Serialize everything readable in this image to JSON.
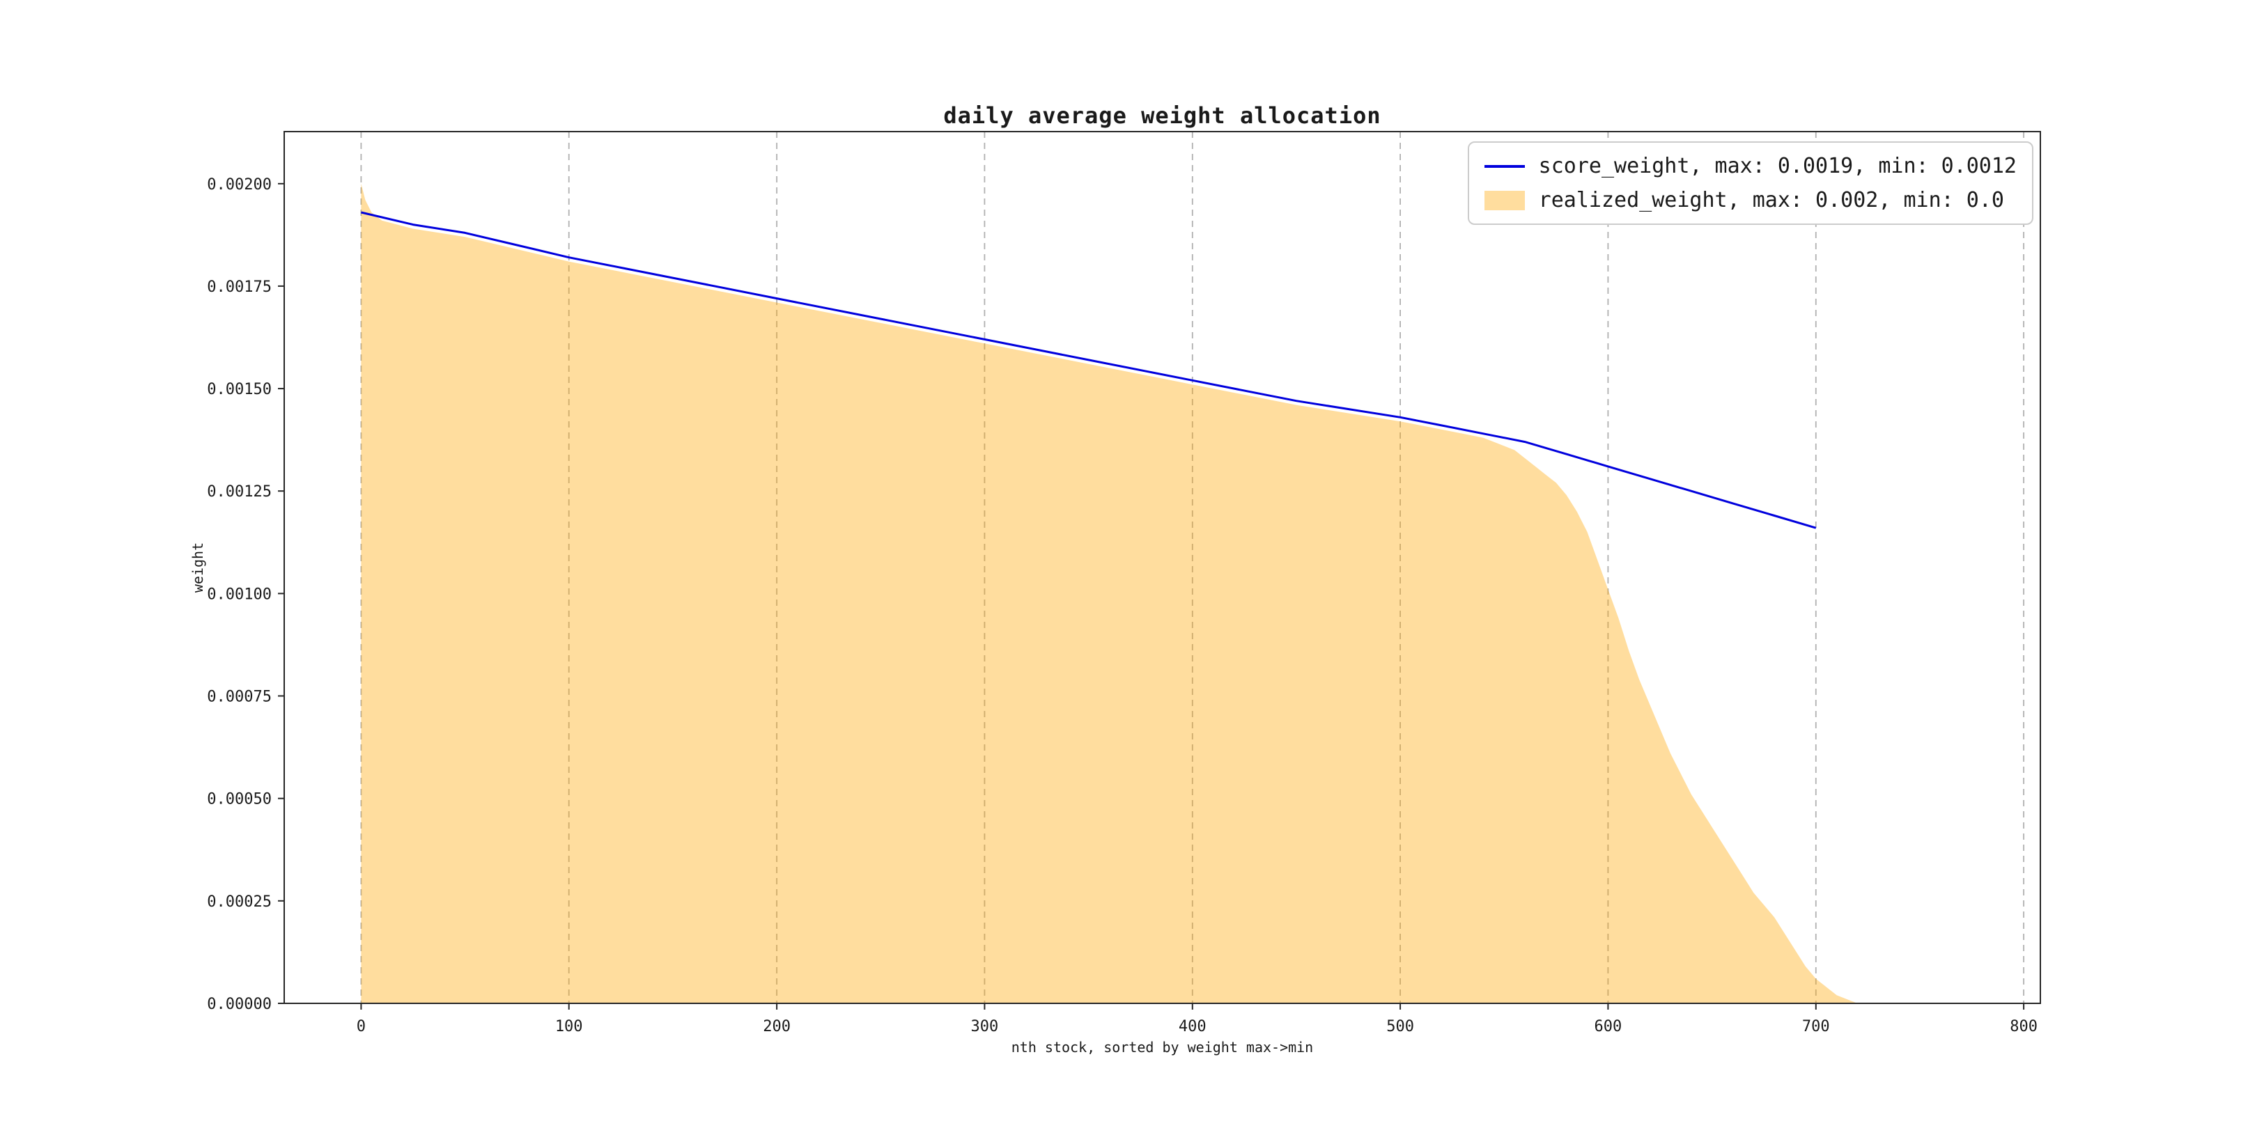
{
  "figure": {
    "title": "daily average weight allocation",
    "xlabel": "nth stock, sorted by weight max->min",
    "ylabel": "weight"
  },
  "legend": {
    "position": "upper right",
    "entries": [
      {
        "name": "score_weight",
        "swatch": "line",
        "color": "#0000dd",
        "label": "score_weight, max: 0.0019, min: 0.0012"
      },
      {
        "name": "realized_weight",
        "swatch": "patch",
        "color": "#ffa500",
        "label": "realized_weight, max: 0.002, min: 0.0"
      }
    ]
  },
  "chart_data": {
    "type": "area",
    "title": "daily average weight allocation",
    "xlabel": "nth stock, sorted by weight max->min",
    "ylabel": "weight",
    "xlim": [
      -37,
      808
    ],
    "ylim": [
      0,
      0.002127
    ],
    "x_ticks": [
      0,
      100,
      200,
      300,
      400,
      500,
      600,
      700,
      800
    ],
    "y_ticks": [
      0,
      0.00025,
      0.0005,
      0.00075,
      0.001,
      0.00125,
      0.0015,
      0.00175,
      0.002
    ],
    "y_tick_labels": [
      "0.00000",
      "0.00025",
      "0.00050",
      "0.00075",
      "0.00100",
      "0.00125",
      "0.00150",
      "0.00175",
      "0.00200"
    ],
    "grid": "vertical-dashed",
    "legend_position": "upper right",
    "style": {
      "grid_color": "#b0b0b0",
      "spine_color": "#262626",
      "text_color": "#1a1a1a"
    },
    "series": [
      {
        "name": "score_weight",
        "type": "line",
        "color": "#0000dd",
        "max": 0.0019,
        "min": 0.0012,
        "x": [
          0,
          25,
          50,
          75,
          100,
          150,
          200,
          250,
          300,
          350,
          400,
          450,
          500,
          520,
          540,
          560,
          580,
          600,
          620,
          640,
          660,
          680,
          700
        ],
        "y": [
          0.00193,
          0.0019,
          0.00188,
          0.00185,
          0.00182,
          0.00177,
          0.00172,
          0.00167,
          0.00162,
          0.00157,
          0.00152,
          0.00147,
          0.00143,
          0.00141,
          0.00139,
          0.00137,
          0.00134,
          0.00131,
          0.00128,
          0.00125,
          0.00122,
          0.00119,
          0.00116
        ]
      },
      {
        "name": "realized_weight",
        "type": "area",
        "color": "#ffa500",
        "opacity": 0.38,
        "max": 0.002,
        "min": 0.0,
        "x": [
          0,
          2,
          5,
          10,
          25,
          50,
          100,
          150,
          200,
          250,
          300,
          350,
          400,
          450,
          500,
          510,
          520,
          530,
          540,
          550,
          555,
          560,
          565,
          570,
          575,
          580,
          585,
          590,
          595,
          600,
          605,
          610,
          615,
          620,
          625,
          630,
          635,
          640,
          645,
          650,
          655,
          660,
          665,
          670,
          675,
          680,
          685,
          690,
          695,
          700,
          705,
          710,
          715,
          720
        ],
        "y": [
          0.002,
          0.00196,
          0.00193,
          0.00191,
          0.00189,
          0.00187,
          0.00181,
          0.00176,
          0.00171,
          0.00166,
          0.00161,
          0.00156,
          0.00151,
          0.00146,
          0.00142,
          0.00141,
          0.0014,
          0.00139,
          0.00138,
          0.00136,
          0.00135,
          0.00133,
          0.00131,
          0.00129,
          0.00127,
          0.00124,
          0.0012,
          0.00115,
          0.00108,
          0.00101,
          0.00094,
          0.00086,
          0.00079,
          0.00073,
          0.00067,
          0.00061,
          0.00056,
          0.00051,
          0.00047,
          0.00043,
          0.00039,
          0.00035,
          0.00031,
          0.00027,
          0.00024,
          0.00021,
          0.00017,
          0.00013,
          9e-05,
          6e-05,
          4e-05,
          2e-05,
          1e-05,
          0.0
        ]
      }
    ]
  }
}
